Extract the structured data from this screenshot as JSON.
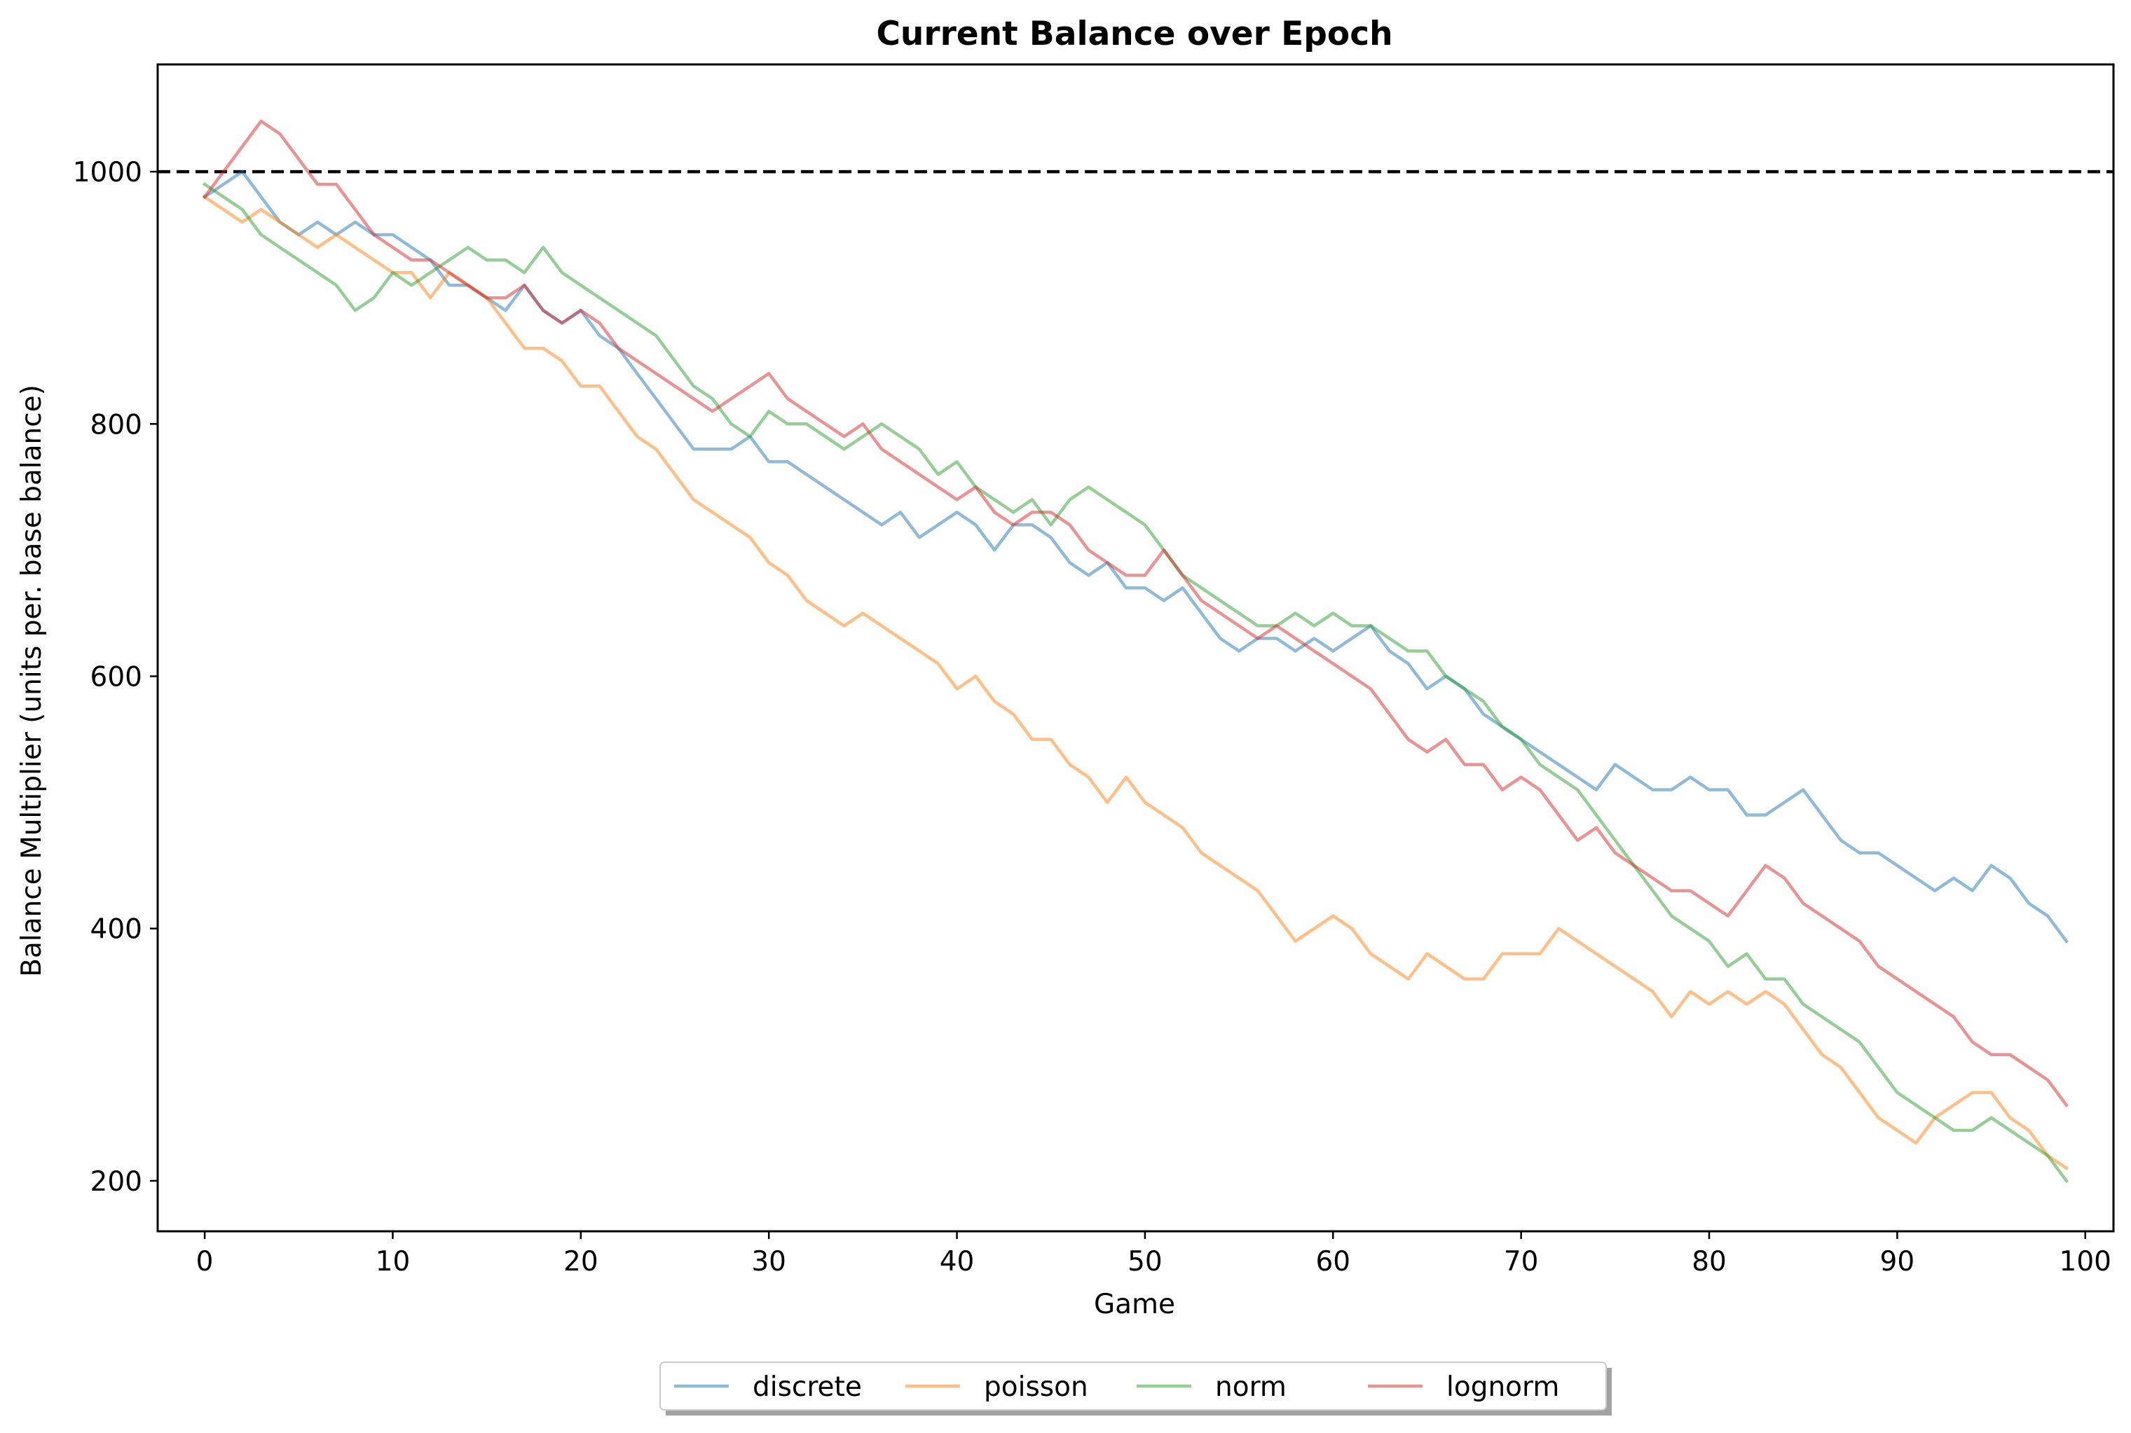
{
  "chart_data": {
    "type": "line",
    "title": "Current Balance over Epoch",
    "xlabel": "Game",
    "ylabel": "Balance Multiplier (units per. base balance)",
    "xlim": [
      -2.5,
      101.5
    ],
    "ylim": [
      160,
      1085
    ],
    "xticks": [
      0,
      10,
      20,
      30,
      40,
      50,
      60,
      70,
      80,
      90,
      100
    ],
    "yticks": [
      200,
      400,
      600,
      800,
      1000
    ],
    "grid": false,
    "legend": {
      "placement": "bottom-center, below axes, 4 columns, shadow"
    },
    "reference_line": {
      "y": 1000,
      "style": "dashed",
      "color": "#000000"
    },
    "series": [
      {
        "name": "discrete",
        "color": "#1f77b4",
        "alpha": 0.5,
        "x_start": 0,
        "values": [
          980,
          990,
          1000,
          980,
          960,
          950,
          960,
          950,
          960,
          950,
          950,
          940,
          930,
          910,
          910,
          900,
          890,
          910,
          890,
          880,
          890,
          870,
          860,
          840,
          820,
          800,
          780,
          780,
          780,
          790,
          770,
          770,
          760,
          750,
          740,
          730,
          720,
          730,
          710,
          720,
          730,
          720,
          700,
          720,
          720,
          710,
          690,
          680,
          690,
          670,
          670,
          660,
          670,
          650,
          630,
          620,
          630,
          630,
          620,
          630,
          620,
          630,
          640,
          620,
          610,
          590,
          600,
          590,
          570,
          560,
          550,
          540,
          530,
          520,
          510,
          530,
          520,
          510,
          510,
          520,
          510,
          510,
          490,
          490,
          500,
          510,
          490,
          470,
          460,
          460,
          450,
          440,
          430,
          440,
          430,
          450,
          440,
          420,
          410,
          390
        ]
      },
      {
        "name": "poisson",
        "color": "#ff7f0e",
        "alpha": 0.5,
        "x_start": 0,
        "values": [
          980,
          970,
          960,
          970,
          960,
          950,
          940,
          950,
          940,
          930,
          920,
          920,
          900,
          920,
          910,
          900,
          880,
          860,
          860,
          850,
          830,
          830,
          810,
          790,
          780,
          760,
          740,
          730,
          720,
          710,
          690,
          680,
          660,
          650,
          640,
          650,
          640,
          630,
          620,
          610,
          590,
          600,
          580,
          570,
          550,
          550,
          530,
          520,
          500,
          520,
          500,
          490,
          480,
          460,
          450,
          440,
          430,
          410,
          390,
          400,
          410,
          400,
          380,
          370,
          360,
          380,
          370,
          360,
          360,
          380,
          380,
          380,
          400,
          390,
          380,
          370,
          360,
          350,
          330,
          350,
          340,
          350,
          340,
          350,
          340,
          320,
          300,
          290,
          270,
          250,
          240,
          230,
          250,
          260,
          270,
          270,
          250,
          240,
          220,
          210
        ]
      },
      {
        "name": "norm",
        "color": "#2ca02c",
        "alpha": 0.5,
        "x_start": 0,
        "values": [
          990,
          980,
          970,
          950,
          940,
          930,
          920,
          910,
          890,
          900,
          920,
          910,
          920,
          930,
          940,
          930,
          930,
          920,
          940,
          920,
          910,
          900,
          890,
          880,
          870,
          850,
          830,
          820,
          800,
          790,
          810,
          800,
          800,
          790,
          780,
          790,
          800,
          790,
          780,
          760,
          770,
          750,
          740,
          730,
          740,
          720,
          740,
          750,
          740,
          730,
          720,
          700,
          680,
          670,
          660,
          650,
          640,
          640,
          650,
          640,
          650,
          640,
          640,
          630,
          620,
          620,
          600,
          590,
          580,
          560,
          550,
          530,
          520,
          510,
          490,
          470,
          450,
          430,
          410,
          400,
          390,
          370,
          380,
          360,
          360,
          340,
          330,
          320,
          310,
          290,
          270,
          260,
          250,
          240,
          240,
          250,
          240,
          230,
          220,
          200
        ]
      },
      {
        "name": "lognorm",
        "color": "#d62728",
        "alpha": 0.5,
        "x_start": 0,
        "values": [
          980,
          1000,
          1020,
          1040,
          1030,
          1010,
          990,
          990,
          970,
          950,
          940,
          930,
          930,
          920,
          910,
          900,
          900,
          910,
          890,
          880,
          890,
          880,
          860,
          850,
          840,
          830,
          820,
          810,
          820,
          830,
          840,
          820,
          810,
          800,
          790,
          800,
          780,
          770,
          760,
          750,
          740,
          750,
          730,
          720,
          730,
          730,
          720,
          700,
          690,
          680,
          680,
          700,
          680,
          660,
          650,
          640,
          630,
          640,
          630,
          620,
          610,
          600,
          590,
          570,
          550,
          540,
          550,
          530,
          530,
          510,
          520,
          510,
          490,
          470,
          480,
          460,
          450,
          440,
          430,
          430,
          420,
          410,
          430,
          450,
          440,
          420,
          410,
          400,
          390,
          370,
          360,
          350,
          340,
          330,
          310,
          300,
          300,
          290,
          280,
          260
        ]
      }
    ]
  }
}
